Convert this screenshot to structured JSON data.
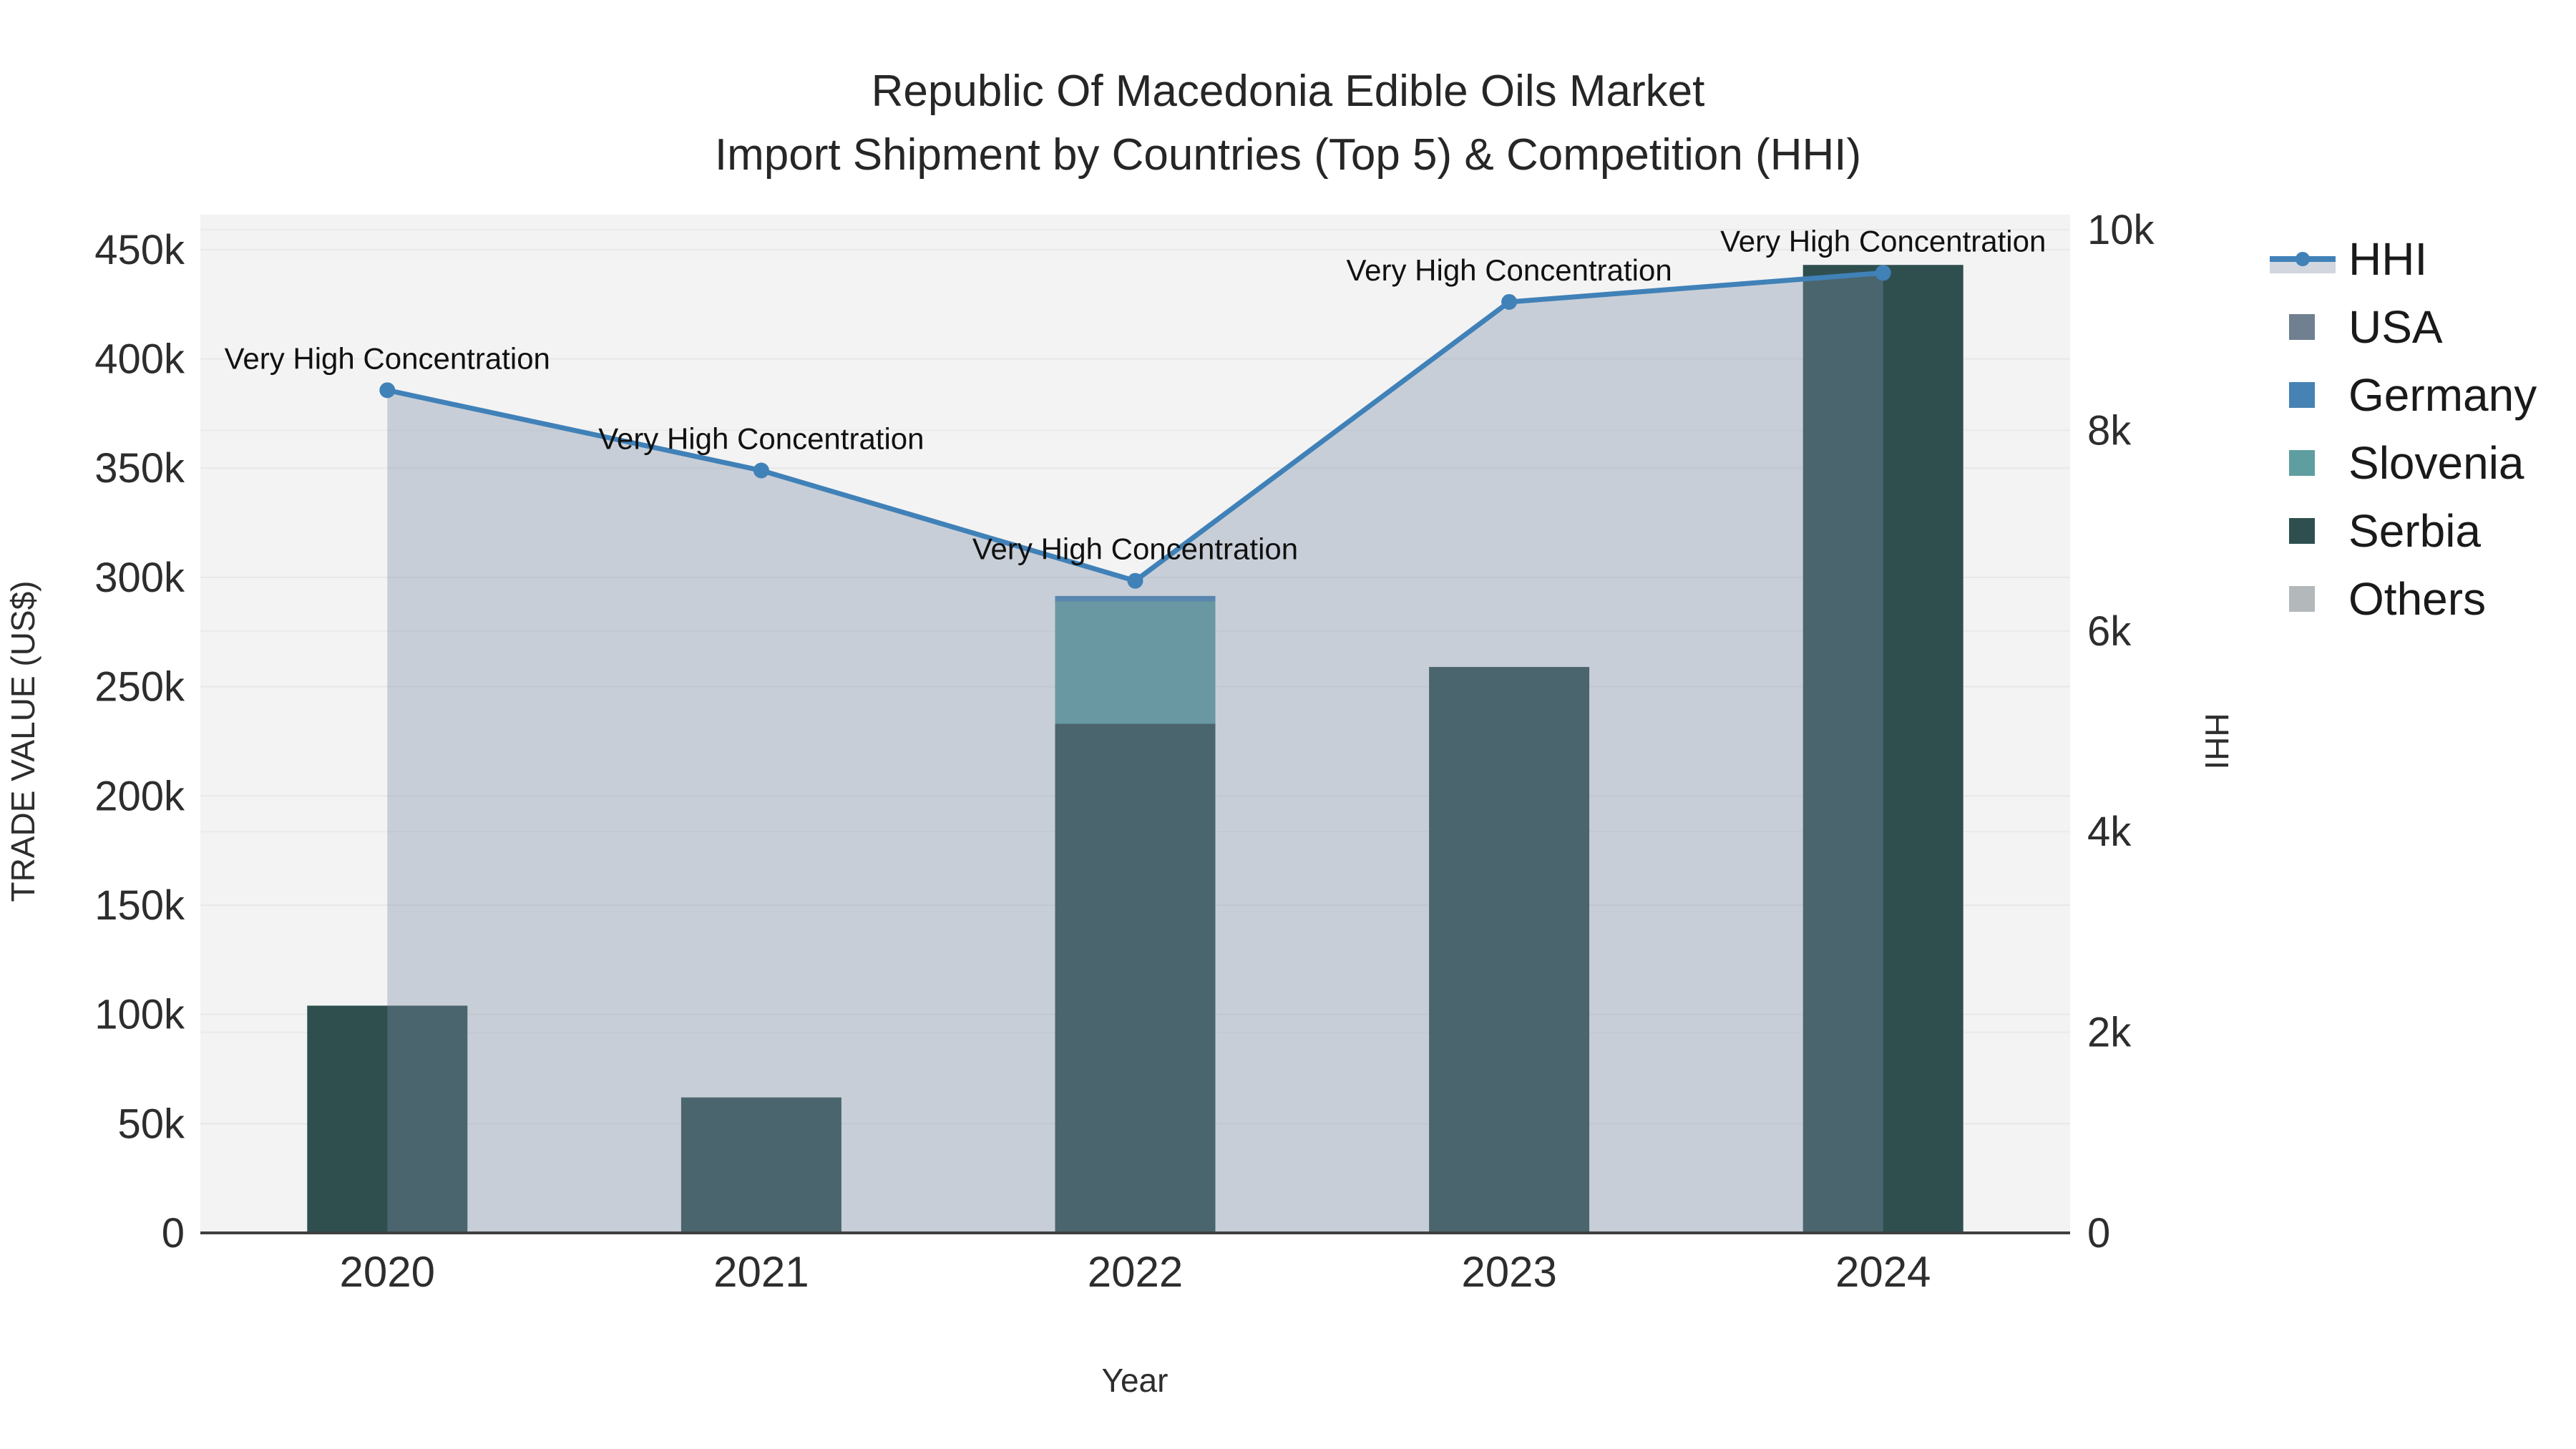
{
  "title": {
    "line1": "Republic Of Macedonia Edible Oils Market",
    "line2": "Import Shipment by Countries (Top 5) & Competition (HHI)"
  },
  "chart_data": {
    "type": "bar+line",
    "categories": [
      "2020",
      "2021",
      "2022",
      "2023",
      "2024"
    ],
    "bar_series": [
      {
        "name": "USA",
        "color": "#708090",
        "values": [
          0,
          0,
          0,
          0,
          0
        ]
      },
      {
        "name": "Germany",
        "color": "#4682b4",
        "values": [
          0,
          0,
          2500,
          0,
          0
        ]
      },
      {
        "name": "Slovenia",
        "color": "#5f9ea0",
        "values": [
          0,
          0,
          56000,
          0,
          0
        ]
      },
      {
        "name": "Serbia",
        "color": "#2f4f4f",
        "values": [
          104000,
          62000,
          233000,
          259000,
          443000
        ]
      },
      {
        "name": "Others",
        "color": "#b3b8ba",
        "values": [
          0,
          0,
          0,
          0,
          0
        ]
      }
    ],
    "stack_order_bottom_to_top": [
      "Others",
      "Serbia",
      "Slovenia",
      "Germany",
      "USA"
    ],
    "line_series": {
      "name": "HHI",
      "color": "#4081b8",
      "fill": "rgba(124,140,166,0.36)",
      "legend_fill_sample": "#d1d6df",
      "values": [
        8400,
        7600,
        6500,
        9280,
        9570
      ]
    },
    "annotations": [
      {
        "category": "2020",
        "text": "Very High Concentration"
      },
      {
        "category": "2021",
        "text": "Very High Concentration"
      },
      {
        "category": "2022",
        "text": "Very High Concentration"
      },
      {
        "category": "2023",
        "text": "Very High Concentration"
      },
      {
        "category": "2024",
        "text": "Very High Concentration"
      }
    ],
    "axes": {
      "left": {
        "title": "TRADE VALUE (US$)",
        "range": [
          0,
          466000
        ],
        "ticks": [
          {
            "value": 0,
            "label": "0"
          },
          {
            "value": 50000,
            "label": "50k"
          },
          {
            "value": 100000,
            "label": "100k"
          },
          {
            "value": 150000,
            "label": "150k"
          },
          {
            "value": 200000,
            "label": "200k"
          },
          {
            "value": 250000,
            "label": "250k"
          },
          {
            "value": 300000,
            "label": "300k"
          },
          {
            "value": 350000,
            "label": "350k"
          },
          {
            "value": 400000,
            "label": "400k"
          },
          {
            "value": 450000,
            "label": "450k"
          }
        ]
      },
      "right": {
        "title": "HHI",
        "range": [
          0,
          10150
        ],
        "ticks": [
          {
            "value": 0,
            "label": "0"
          },
          {
            "value": 2000,
            "label": "2k"
          },
          {
            "value": 4000,
            "label": "4k"
          },
          {
            "value": 6000,
            "label": "6k"
          },
          {
            "value": 8000,
            "label": "8k"
          },
          {
            "value": 10000,
            "label": "10k"
          }
        ]
      },
      "x": {
        "title": "Year"
      }
    },
    "legend": {
      "items": [
        "HHI",
        "USA",
        "Germany",
        "Slovenia",
        "Serbia",
        "Others"
      ]
    },
    "colors": {
      "plot_background": "#f3f3f3",
      "grid_left": "#e6e8e8",
      "grid_right": "#e9ebeb",
      "axis_line": "#3f3f3f"
    }
  }
}
